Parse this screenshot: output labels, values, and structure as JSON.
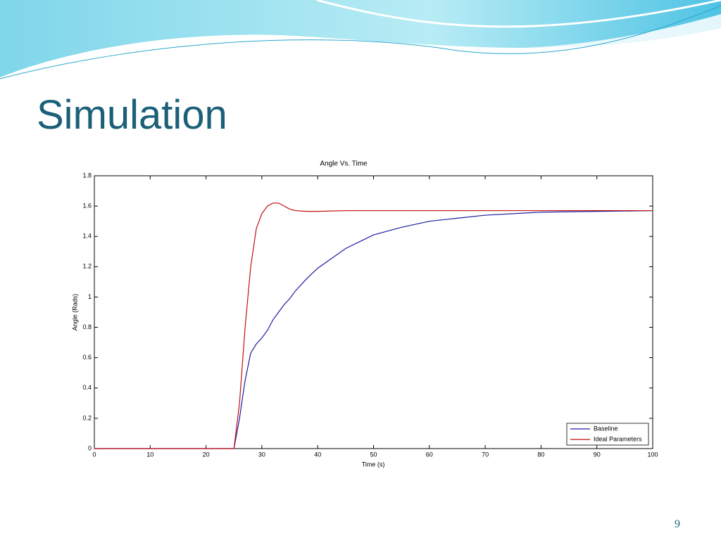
{
  "slide": {
    "title": "Simulation",
    "page_number": "9"
  },
  "chart_data": {
    "type": "line",
    "title": "Angle Vs. Time",
    "x_label": "Time (s)",
    "y_label": "Angle (Rads)",
    "x": [
      0,
      25,
      26,
      27,
      28,
      29,
      30,
      31,
      32,
      33,
      34,
      35,
      36,
      38,
      40,
      45,
      50,
      55,
      60,
      65,
      70,
      80,
      90,
      100
    ],
    "series": [
      {
        "name": "Baseline",
        "color": "#1c1ca0",
        "values": [
          0,
          0,
          0.2,
          0.45,
          0.63,
          0.69,
          0.73,
          0.78,
          0.85,
          0.9,
          0.95,
          0.99,
          1.04,
          1.12,
          1.19,
          1.32,
          1.41,
          1.46,
          1.5,
          1.52,
          1.54,
          1.56,
          1.565,
          1.57
        ]
      },
      {
        "name": "Ideal Parameters",
        "color": "#c01010",
        "values": [
          0,
          0,
          0.3,
          0.8,
          1.2,
          1.45,
          1.55,
          1.6,
          1.62,
          1.62,
          1.6,
          1.58,
          1.57,
          1.565,
          1.565,
          1.57,
          1.57,
          1.57,
          1.57,
          1.57,
          1.57,
          1.57,
          1.57,
          1.57
        ]
      }
    ],
    "xlim": [
      0,
      100
    ],
    "xticks": [
      0,
      10,
      20,
      30,
      40,
      50,
      60,
      70,
      80,
      90,
      100
    ],
    "ylim": [
      0,
      1.8
    ],
    "yticks": [
      0,
      0.2,
      0.4,
      0.6,
      0.8,
      1,
      1.2,
      1.4,
      1.6,
      1.8
    ],
    "grid": false,
    "legend": "lower right"
  }
}
